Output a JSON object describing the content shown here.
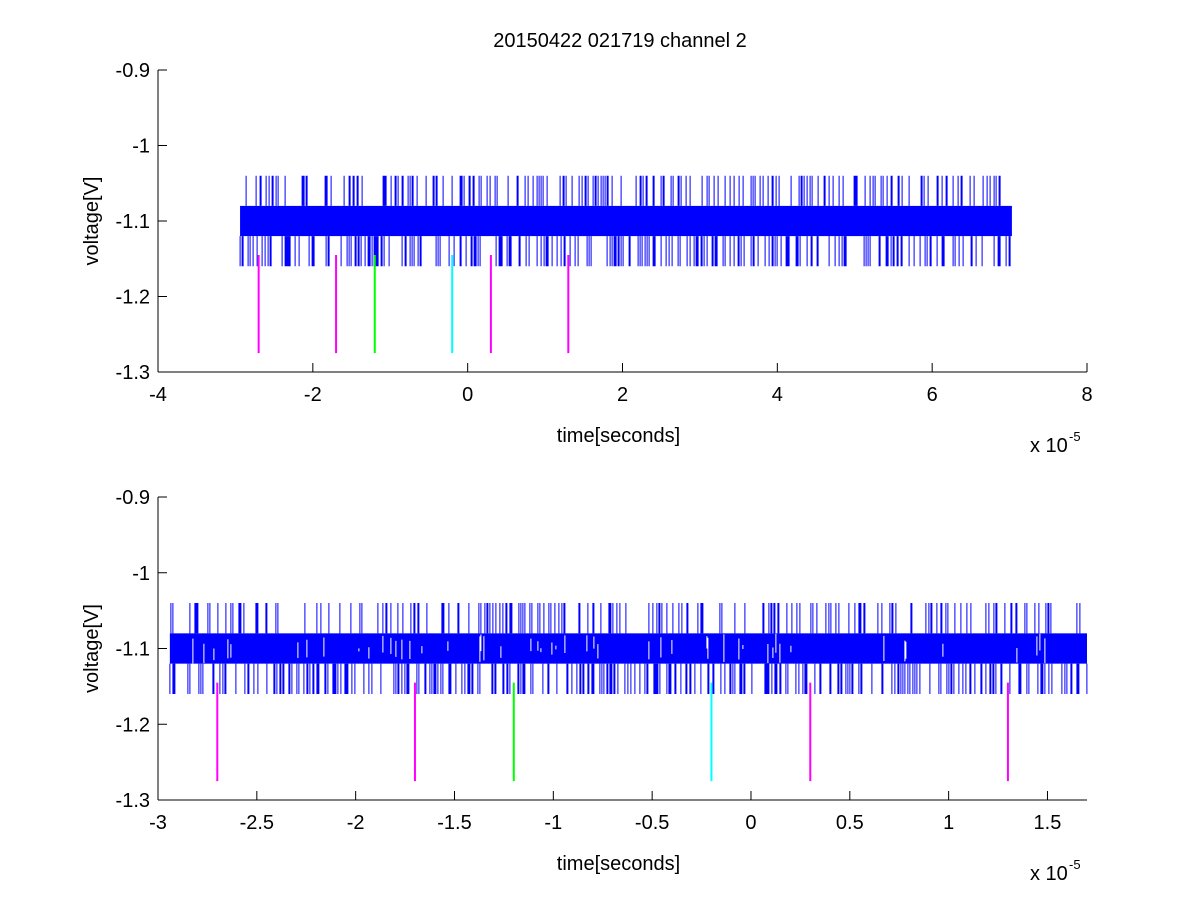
{
  "figure": {
    "title": "20150422 021719 channel 2"
  },
  "chart_data": [
    {
      "type": "line",
      "title": "20150422 021719 channel 2",
      "xlabel": "time[seconds]",
      "ylabel": "voltage[V]",
      "x_multiplier_label": "x 10",
      "x_multiplier_exp": "-5",
      "xlim": [
        -4,
        8
      ],
      "ylim": [
        -1.3,
        -0.9
      ],
      "x_ticks": [
        -4,
        -2,
        0,
        2,
        4,
        6,
        8
      ],
      "x_tick_labels": [
        "-4",
        "-2",
        "0",
        "2",
        "4",
        "6",
        "8"
      ],
      "y_ticks": [
        -0.9,
        -1,
        -1.1,
        -1.2,
        -1.3
      ],
      "y_tick_labels": [
        "-0.9",
        "-1",
        "-1.1",
        "-1.2",
        "-1.3"
      ],
      "grid": false,
      "series": [
        {
          "color": "#0000ff",
          "x_range": [
            -2.94,
            7.03
          ],
          "band": [
            -1.12,
            -1.08
          ],
          "spikes_up_to": -1.04,
          "spikes_down_to": -1.16
        }
      ],
      "markers": [
        {
          "x": -2.7,
          "y": [
            -1.275,
            -1.145
          ],
          "color": "#ff00ff"
        },
        {
          "x": -1.7,
          "y": [
            -1.275,
            -1.145
          ],
          "color": "#ff00ff"
        },
        {
          "x": -1.2,
          "y": [
            -1.275,
            -1.145
          ],
          "color": "#00ff00"
        },
        {
          "x": -0.2,
          "y": [
            -1.275,
            -1.145
          ],
          "color": "#00ffff"
        },
        {
          "x": 0.3,
          "y": [
            -1.275,
            -1.145
          ],
          "color": "#ff00ff"
        },
        {
          "x": 1.3,
          "y": [
            -1.275,
            -1.145
          ],
          "color": "#ff00ff"
        }
      ]
    },
    {
      "type": "line",
      "title": "",
      "xlabel": "time[seconds]",
      "ylabel": "voltage[V]",
      "x_multiplier_label": "x 10",
      "x_multiplier_exp": "-5",
      "xlim": [
        -3.0,
        1.7
      ],
      "ylim": [
        -1.3,
        -0.9
      ],
      "x_ticks": [
        -3,
        -2.5,
        -2,
        -1.5,
        -1,
        -0.5,
        0,
        0.5,
        1,
        1.5
      ],
      "x_tick_labels": [
        "-3",
        "-2.5",
        "-2",
        "-1.5",
        "-1",
        "-0.5",
        "0",
        "0.5",
        "1",
        "1.5"
      ],
      "y_ticks": [
        -0.9,
        -1,
        -1.1,
        -1.2,
        -1.3
      ],
      "y_tick_labels": [
        "-0.9",
        "-1",
        "-1.1",
        "-1.2",
        "-1.3"
      ],
      "grid": false,
      "series": [
        {
          "color": "#0000ff",
          "x_range": [
            -2.94,
            1.7
          ],
          "band": [
            -1.12,
            -1.08
          ],
          "spikes_up_to": -1.04,
          "spikes_down_to": -1.16
        }
      ],
      "markers": [
        {
          "x": -2.7,
          "y": [
            -1.275,
            -1.145
          ],
          "color": "#ff00ff"
        },
        {
          "x": -1.7,
          "y": [
            -1.275,
            -1.145
          ],
          "color": "#ff00ff"
        },
        {
          "x": -1.2,
          "y": [
            -1.275,
            -1.145
          ],
          "color": "#00ff00"
        },
        {
          "x": -0.2,
          "y": [
            -1.275,
            -1.145
          ],
          "color": "#00ffff"
        },
        {
          "x": 0.3,
          "y": [
            -1.275,
            -1.145
          ],
          "color": "#ff00ff"
        },
        {
          "x": 1.3,
          "y": [
            -1.275,
            -1.145
          ],
          "color": "#ff00ff"
        }
      ]
    }
  ]
}
